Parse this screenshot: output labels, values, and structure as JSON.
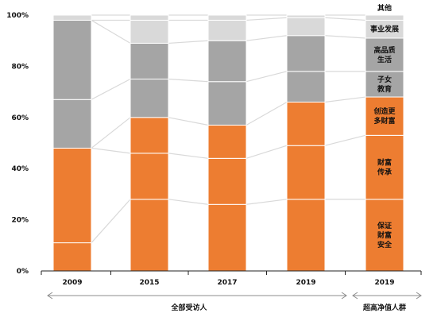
{
  "chart_data": {
    "type": "bar",
    "stacked": true,
    "percent_scale": true,
    "categories": [
      "2009",
      "2015",
      "2017",
      "2019",
      "2019"
    ],
    "ylim": [
      0,
      100
    ],
    "y_ticks": [
      "0%",
      "20%",
      "40%",
      "60%",
      "80%",
      "100%"
    ],
    "series": [
      {
        "name": "保证财富安全",
        "color": "#ED7D31",
        "values": [
          11,
          28,
          26,
          28,
          28
        ]
      },
      {
        "name": "财富传承",
        "color": "#ED7D31",
        "values": [
          37,
          18,
          18,
          21,
          25
        ]
      },
      {
        "name": "创造更多财富",
        "color": "#ED7D31",
        "values": [
          0,
          14,
          13,
          17,
          15
        ]
      },
      {
        "name": "子女教育",
        "color": "#A5A5A5",
        "values": [
          19,
          15,
          17,
          12,
          10
        ]
      },
      {
        "name": "高品质生活",
        "color": "#A5A5A5",
        "values": [
          31,
          14,
          16,
          14,
          13
        ]
      },
      {
        "name": "事业发展",
        "color": "#D9D9D9",
        "values": [
          0,
          9,
          8,
          7,
          7
        ]
      },
      {
        "name": "其他",
        "color": "#D9D9D9",
        "values": [
          2,
          2,
          2,
          1,
          2
        ]
      }
    ],
    "segment_labels": {
      "bar_index": 4,
      "items": [
        {
          "series": 0,
          "lines": [
            "保证",
            "财富",
            "安全"
          ],
          "color": "#111111"
        },
        {
          "series": 1,
          "lines": [
            "财富",
            "传承"
          ],
          "color": "#111111"
        },
        {
          "series": 2,
          "lines": [
            "创造更",
            "多财富"
          ],
          "color": "#111111"
        },
        {
          "series": 3,
          "lines": [
            "子女",
            "教育"
          ],
          "color": "#111111"
        },
        {
          "series": 4,
          "lines": [
            "高品质",
            "生活"
          ],
          "color": "#111111"
        },
        {
          "series": 5,
          "lines": [
            "事业发展"
          ],
          "color": "#111111"
        },
        {
          "series": 6,
          "lines": [
            "其他"
          ],
          "color": "#111111",
          "above": true
        }
      ]
    },
    "groups": [
      {
        "label": "全部受访人",
        "bars": [
          0,
          3
        ]
      },
      {
        "label": "超高净值人群",
        "bars": [
          4,
          4
        ]
      }
    ],
    "connector_color": "#D9D9D9"
  }
}
